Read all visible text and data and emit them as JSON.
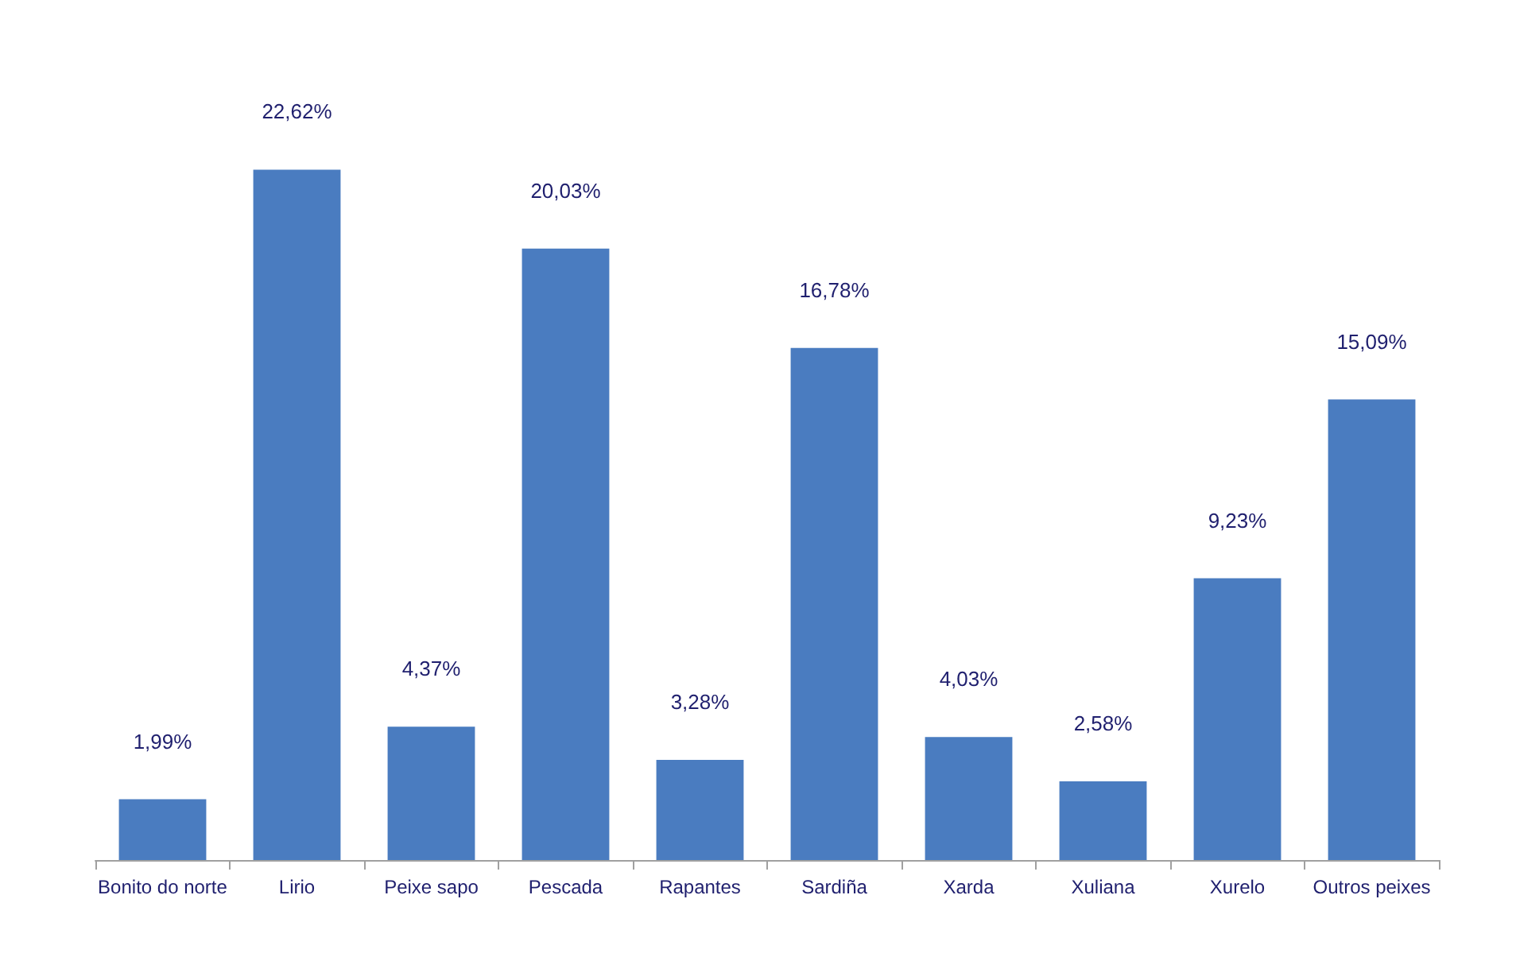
{
  "chart_data": {
    "type": "bar",
    "categories": [
      "Bonito do norte",
      "Lirio",
      "Peixe sapo",
      "Pescada",
      "Rapantes",
      "Sardiña",
      "Xarda",
      "Xuliana",
      "Xurelo",
      "Outros peixes"
    ],
    "values": [
      1.99,
      22.62,
      4.37,
      20.03,
      3.28,
      16.78,
      4.03,
      2.58,
      9.23,
      15.09
    ],
    "value_labels": [
      "1,99%",
      "22,62%",
      "4,37%",
      "20,03%",
      "3,28%",
      "16,78%",
      "4,03%",
      "2,58%",
      "9,23%",
      "15,09%"
    ],
    "color": "#4a7cc0"
  }
}
